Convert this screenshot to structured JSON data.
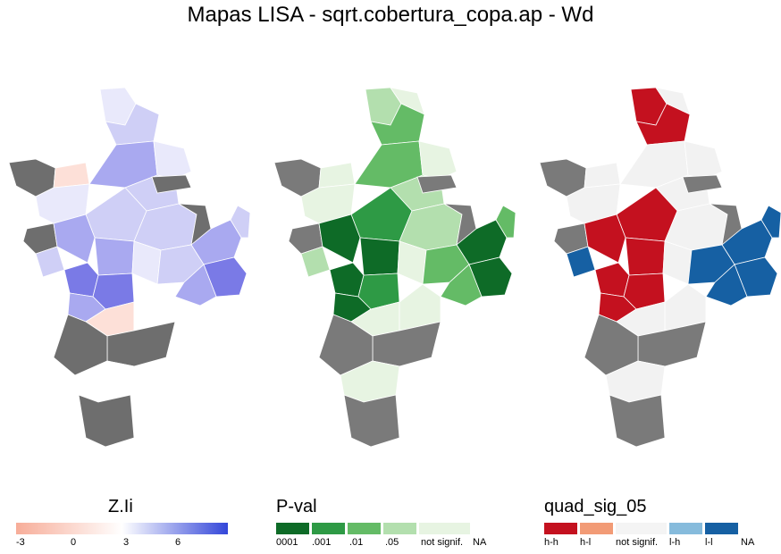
{
  "title": "Mapas LISA - sqrt.cobertura_copa.ap - Wd",
  "maps": [
    {
      "name": "Z.Ii",
      "fills": [
        "#7a7ae6",
        "#a9a9f0",
        "#cfcff6",
        "#e9e9fb",
        "#ffffff",
        "#fde0d8",
        "#f7b6a4"
      ],
      "na": "#6e6e6e"
    },
    {
      "name": "P-val",
      "fills": [
        "#0e6b27",
        "#2e9a45",
        "#64bb66",
        "#b3dfae",
        "#e7f4e2"
      ],
      "na": "#7a7a7a"
    },
    {
      "name": "quad_sig_05",
      "fills": [
        "#c4111f",
        "#1660a3",
        "#f2f2f2"
      ],
      "na": "#7a7a7a"
    }
  ],
  "legend_z": {
    "title": "Z.Ii",
    "gradient": [
      "#f7ad99",
      "#ffffff",
      "#3346d9"
    ],
    "ticks": [
      "-3",
      "0",
      "3",
      "6"
    ]
  },
  "legend_p": {
    "title": "P-val",
    "items": [
      {
        "label": "0001",
        "color": "#0e6b27"
      },
      {
        "label": ".001",
        "color": "#2e9a45"
      },
      {
        "label": ".01",
        "color": "#64bb66"
      },
      {
        "label": ".05",
        "color": "#b3dfae"
      },
      {
        "label": "not signif.",
        "color": "#e7f4e2"
      },
      {
        "label": "NA",
        "color": "#ffffff"
      }
    ]
  },
  "legend_q": {
    "title": "quad_sig_05",
    "items": [
      {
        "label": "h-h",
        "color": "#c4111f"
      },
      {
        "label": "h-l",
        "color": "#f29b76"
      },
      {
        "label": "not signif.",
        "color": "#f4f4f4"
      },
      {
        "label": "l-h",
        "color": "#86bbdc"
      },
      {
        "label": "l-l",
        "color": "#1660a3"
      },
      {
        "label": "NA",
        "color": "#ffffff"
      }
    ]
  }
}
